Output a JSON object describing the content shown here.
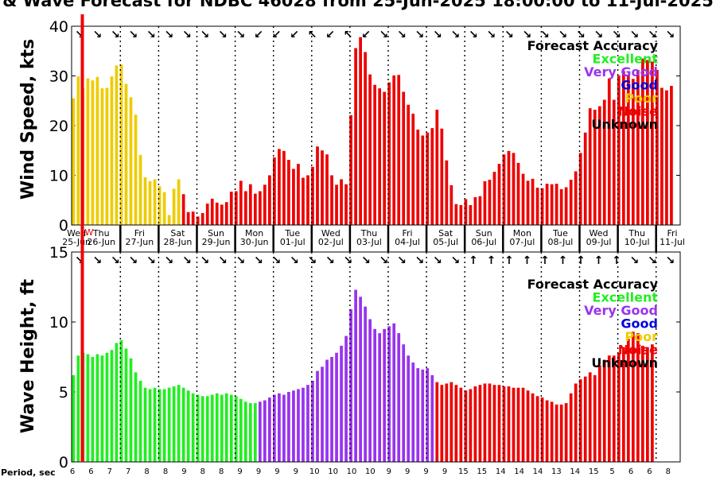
{
  "title": "& Wave Forecast for NDBC 46028 from 25-Jun-2025 18:00:00 to 11-Jul-2025",
  "colors": {
    "Excellent": "#22ee22",
    "Very Good": "#9933ee",
    "Good": "#0000dd",
    "Poor": "#eecc00",
    "Noise": "#ee0000",
    "Unknown": "#000000"
  },
  "days": [
    {
      "name": "Wed",
      "date": "25-Jun"
    },
    {
      "name": "Thu",
      "date": "26-Jun"
    },
    {
      "name": "Fri",
      "date": "27-Jun"
    },
    {
      "name": "Sat",
      "date": "28-Jun"
    },
    {
      "name": "Sun",
      "date": "29-Jun"
    },
    {
      "name": "Mon",
      "date": "30-Jun"
    },
    {
      "name": "Tue",
      "date": "01-Jul"
    },
    {
      "name": "Wed",
      "date": "02-Jul"
    },
    {
      "name": "Thu",
      "date": "03-Jul"
    },
    {
      "name": "Fri",
      "date": "04-Jul"
    },
    {
      "name": "Sat",
      "date": "05-Jul"
    },
    {
      "name": "Sun",
      "date": "06-Jul"
    },
    {
      "name": "Mon",
      "date": "07-Jul"
    },
    {
      "name": "Tue",
      "date": "08-Jul"
    },
    {
      "name": "Wed",
      "date": "09-Jul"
    },
    {
      "name": "Thu",
      "date": "10-Jul"
    },
    {
      "name": "Fri",
      "date": "11-Jul"
    }
  ],
  "now_marker_label": "W",
  "legend": {
    "title": "Forecast Accuracy",
    "items": [
      {
        "label": "Excellent",
        "color": "#22ee22"
      },
      {
        "label": "Very Good",
        "color": "#9933ee"
      },
      {
        "label": "Good",
        "color": "#0000dd"
      },
      {
        "label": "Poor",
        "color": "#eecc00"
      },
      {
        "label": "Noise",
        "color": "#ee0000"
      },
      {
        "label": "Unknown",
        "color": "#000000"
      }
    ]
  },
  "period_label": "Period, sec",
  "periods": [
    6,
    6,
    7,
    7,
    8,
    8,
    9,
    8,
    8,
    9,
    9,
    9,
    9,
    10,
    10,
    10,
    10,
    9,
    9,
    9,
    9,
    15,
    15,
    14,
    14,
    14,
    13,
    14,
    15,
    5,
    6,
    6,
    8,
    7
  ],
  "chart_data": [
    {
      "type": "bar",
      "ylabel": "Wind Speed, kts",
      "ylim": [
        0,
        40
      ],
      "yticks": [
        0,
        10,
        20,
        30,
        40
      ],
      "x_start": "2025-06-25T18:00",
      "x_step_hours": 3,
      "values": [
        25.5,
        29.9,
        27.5,
        29.5,
        29.1,
        29.8,
        27.5,
        27.6,
        29.9,
        32.1,
        32.3,
        28.4,
        25.7,
        22.2,
        14.1,
        9.6,
        8.8,
        9.2,
        7.8,
        6.6,
        2.0,
        7.3,
        9.2,
        6.2,
        2.6,
        2.7,
        1.7,
        2.4,
        4.3,
        5.3,
        4.5,
        4.1,
        4.6,
        6.7,
        6.8,
        8.9,
        6.8,
        8.2,
        6.3,
        6.8,
        8.1,
        10.0,
        13.6,
        15.3,
        14.9,
        13.1,
        11.3,
        12.3,
        9.5,
        10.0,
        11.7,
        15.8,
        15.0,
        14.2,
        10.0,
        8.1,
        9.2,
        8.2,
        22.1,
        35.6,
        37.8,
        34.8,
        30.3,
        28.2,
        27.5,
        26.8,
        28.7,
        30.1,
        30.2,
        26.8,
        24.2,
        22.4,
        19.2,
        18.0,
        18.6,
        19.5,
        23.2,
        19.4,
        13.0,
        8.0,
        4.2,
        4.0,
        5.2,
        4.0,
        5.6,
        5.8,
        8.8,
        9.1,
        10.7,
        12.3,
        14.2,
        14.9,
        14.5,
        12.5,
        10.3,
        8.9,
        9.3,
        7.5,
        7.4,
        8.3,
        8.2,
        8.3,
        7.2,
        7.6,
        9.1,
        10.8,
        14.5,
        18.6,
        23.5,
        23.2,
        23.9,
        25.2,
        29.5,
        25.2,
        30.1,
        31.0,
        30.2,
        29.4,
        31.2,
        33.5,
        33.2,
        32.9,
        31.2,
        27.6,
        27.1,
        28.0
      ],
      "wind_arrows": [
        "↘",
        "↘",
        "↘",
        "↘",
        "↘",
        "↘",
        "↘",
        "↘",
        "↘",
        "↘",
        "↙",
        "↙",
        "↙",
        "↖",
        "↙",
        "↖",
        "↙",
        "↘",
        "↘",
        "↘",
        "↘",
        "↘",
        "↘",
        "↘",
        "↘",
        "↘",
        "↘",
        "↘",
        "↘",
        "↘",
        "↘",
        "↘",
        "↘",
        "↘",
        "↘",
        "↘"
      ],
      "colors": [
        "poor",
        "poor",
        "poor",
        "poor",
        "poor",
        "poor",
        "poor",
        "poor",
        "poor",
        "poor",
        "poor",
        "poor",
        "poor",
        "poor",
        "poor",
        "poor",
        "poor",
        "poor",
        "poor",
        "poor",
        "poor",
        "poor",
        "poor",
        "noise",
        "noise",
        "noise",
        "noise",
        "noise",
        "noise",
        "noise",
        "noise",
        "noise",
        "noise",
        "noise",
        "noise",
        "noise",
        "noise",
        "noise",
        "noise",
        "noise",
        "noise",
        "noise",
        "noise",
        "noise",
        "noise",
        "noise",
        "noise",
        "noise",
        "noise",
        "noise",
        "noise",
        "noise",
        "noise",
        "noise",
        "noise",
        "noise",
        "noise",
        "noise",
        "noise",
        "noise",
        "noise",
        "noise",
        "noise",
        "noise",
        "noise",
        "noise",
        "noise",
        "noise",
        "noise",
        "noise",
        "noise",
        "noise",
        "noise",
        "noise",
        "noise",
        "noise",
        "noise",
        "noise",
        "noise",
        "noise",
        "noise",
        "noise",
        "noise",
        "noise",
        "noise",
        "noise",
        "noise",
        "noise",
        "noise",
        "noise",
        "noise",
        "noise",
        "noise",
        "noise",
        "noise",
        "noise",
        "noise",
        "noise",
        "noise",
        "noise",
        "noise",
        "noise",
        "noise",
        "noise",
        "noise",
        "noise",
        "noise",
        "noise",
        "noise",
        "noise",
        "noise",
        "noise",
        "noise",
        "noise",
        "noise",
        "noise",
        "noise",
        "noise",
        "noise",
        "noise",
        "noise",
        "noise",
        "noise",
        "noise",
        "noise",
        "noise"
      ]
    },
    {
      "type": "bar",
      "ylabel": "Wave Height, ft",
      "ylim": [
        0,
        15
      ],
      "yticks": [
        0,
        5,
        10,
        15
      ],
      "x_start": "2025-06-25T18:00",
      "x_step_hours": 3,
      "values": [
        6.2,
        7.6,
        7.8,
        7.7,
        7.5,
        7.7,
        7.6,
        7.8,
        8.0,
        8.5,
        8.7,
        8.1,
        7.4,
        6.4,
        5.8,
        5.3,
        5.2,
        5.3,
        5.2,
        5.2,
        5.3,
        5.4,
        5.5,
        5.3,
        5.1,
        4.9,
        4.8,
        4.7,
        4.7,
        4.8,
        4.9,
        4.8,
        4.9,
        4.8,
        4.7,
        4.5,
        4.3,
        4.2,
        4.2,
        4.3,
        4.4,
        4.6,
        4.8,
        4.9,
        4.8,
        5.0,
        5.1,
        5.2,
        5.3,
        5.5,
        5.8,
        6.5,
        6.8,
        7.3,
        7.5,
        7.8,
        8.3,
        9.0,
        10.9,
        12.3,
        11.8,
        11.1,
        10.2,
        9.5,
        9.2,
        9.5,
        9.7,
        9.9,
        9.2,
        8.4,
        7.6,
        7.1,
        6.7,
        6.6,
        6.7,
        6.2,
        5.7,
        5.5,
        5.6,
        5.7,
        5.5,
        5.3,
        5.1,
        5.2,
        5.4,
        5.5,
        5.6,
        5.6,
        5.5,
        5.5,
        5.4,
        5.4,
        5.3,
        5.3,
        5.3,
        5.1,
        4.9,
        4.7,
        4.6,
        4.4,
        4.3,
        4.1,
        4.1,
        4.2,
        4.9,
        5.6,
        5.9,
        6.1,
        6.4,
        6.2,
        6.9,
        7.3,
        7.6,
        7.6,
        7.8,
        8.2,
        8.8,
        9.3,
        9.2,
        8.3,
        8.2,
        8.4
      ],
      "swell_arrows": [
        "↘",
        "↘",
        "↘",
        "↘",
        "↘",
        "↘",
        "↘",
        "↘",
        "↘",
        "↘",
        "↘",
        "↘",
        "↘",
        "↘",
        "↘",
        "↘",
        "↘",
        "↘",
        "↘",
        "↘",
        "↘",
        "↘",
        "↑",
        "↑",
        "↑",
        "↑",
        "↑",
        "↑",
        "↑",
        "↑",
        "↑",
        "↘",
        "↘",
        "↘",
        "↘",
        "↘"
      ],
      "colors": [
        "excellent",
        "excellent",
        "excellent",
        "excellent",
        "excellent",
        "excellent",
        "excellent",
        "excellent",
        "excellent",
        "excellent",
        "excellent",
        "excellent",
        "excellent",
        "excellent",
        "excellent",
        "excellent",
        "excellent",
        "excellent",
        "excellent",
        "excellent",
        "excellent",
        "excellent",
        "excellent",
        "excellent",
        "excellent",
        "excellent",
        "excellent",
        "excellent",
        "excellent",
        "excellent",
        "excellent",
        "excellent",
        "excellent",
        "excellent",
        "excellent",
        "excellent",
        "excellent",
        "excellent",
        "excellent",
        "very",
        "very",
        "very",
        "very",
        "very",
        "very",
        "very",
        "very",
        "very",
        "very",
        "very",
        "very",
        "very",
        "very",
        "very",
        "very",
        "very",
        "very",
        "very",
        "very",
        "very",
        "very",
        "very",
        "very",
        "very",
        "very",
        "very",
        "very",
        "very",
        "very",
        "very",
        "very",
        "very",
        "very",
        "very",
        "very",
        "very",
        "noise",
        "noise",
        "noise",
        "noise",
        "noise",
        "noise",
        "noise",
        "noise",
        "noise",
        "noise",
        "noise",
        "noise",
        "noise",
        "noise",
        "noise",
        "noise",
        "noise",
        "noise",
        "noise",
        "noise",
        "noise",
        "noise",
        "noise",
        "noise",
        "noise",
        "noise",
        "noise",
        "noise",
        "noise",
        "noise",
        "noise",
        "noise",
        "noise",
        "noise",
        "noise",
        "noise",
        "noise",
        "noise",
        "noise",
        "noise",
        "noise",
        "noise",
        "noise",
        "noise",
        "noise",
        "noise"
      ]
    }
  ]
}
